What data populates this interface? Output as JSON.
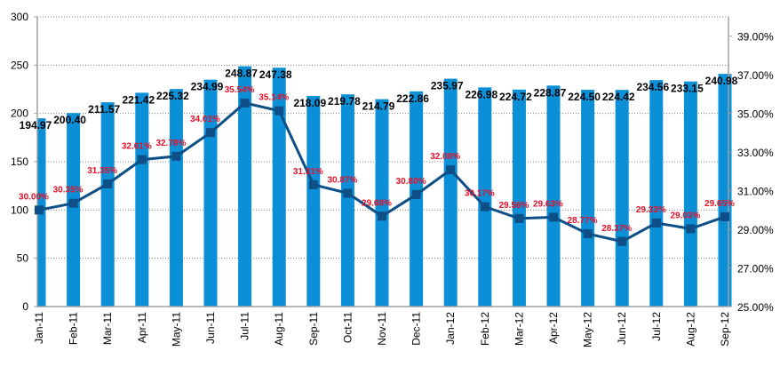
{
  "chart_data": {
    "type": "bar",
    "title": "",
    "xlabel": "",
    "ylabel": "",
    "categories": [
      "Jan-11",
      "Feb-11",
      "Mar-11",
      "Apr-11",
      "May-11",
      "Jun-11",
      "Jul-11",
      "Aug-11",
      "Sep-11",
      "Oct-11",
      "Nov-11",
      "Dec-11",
      "Jan-12",
      "Feb-12",
      "Mar-12",
      "Apr-12",
      "May-12",
      "Jun-12",
      "Jul-12",
      "Aug-12",
      "Sep-12"
    ],
    "series": [
      {
        "name": "Value",
        "type": "bar",
        "axis": "left",
        "color": "#0b8fd6",
        "values": [
          194.97,
          200.4,
          211.57,
          221.42,
          225.32,
          234.99,
          248.87,
          247.38,
          218.09,
          219.78,
          214.79,
          222.86,
          235.97,
          226.98,
          224.72,
          228.87,
          224.5,
          224.42,
          234.56,
          233.15,
          240.98
        ],
        "labels": [
          "194.97",
          "200.40",
          "211.57",
          "221.42",
          "225.32",
          "234.99",
          "248.87",
          "247.38",
          "218.09",
          "219.78",
          "214.79",
          "222.86",
          "235.97",
          "226.98",
          "224.72",
          "228.87",
          "224.50",
          "224.42",
          "234.56",
          "233.15",
          "240.98"
        ]
      },
      {
        "name": "Percent",
        "type": "line",
        "axis": "right",
        "color": "#0d4f86",
        "label_color": "#e8102a",
        "values": [
          30.0,
          30.35,
          31.35,
          32.61,
          32.78,
          34.01,
          35.54,
          35.14,
          31.31,
          30.87,
          29.68,
          30.8,
          32.08,
          30.17,
          29.56,
          29.63,
          28.77,
          28.37,
          29.33,
          29.03,
          29.65
        ],
        "labels": [
          "30.00%",
          "30.35%",
          "31.35%",
          "32.61%",
          "32.78%",
          "34.01%",
          "35.54%",
          "35.14%",
          "31.31%",
          "30.87%",
          "29.68%",
          "30.80%",
          "32.08%",
          "30.17%",
          "29.56%",
          "29.63%",
          "28.77%",
          "28.37%",
          "29.33%",
          "29.03%",
          "29.65%"
        ]
      }
    ],
    "y_left": {
      "ylim": [
        0,
        300
      ],
      "ticks": [
        0,
        50,
        100,
        150,
        200,
        250,
        300
      ],
      "tick_labels": [
        "0",
        "50",
        "100",
        "150",
        "200",
        "250",
        "300"
      ]
    },
    "y_right": {
      "ylim": [
        25,
        40
      ],
      "ticks": [
        25,
        27,
        29,
        31,
        33,
        35,
        37,
        39
      ],
      "tick_labels": [
        "25.00%",
        "27.00%",
        "29.00%",
        "31.00%",
        "33.00%",
        "35.00%",
        "37.00%",
        "39.00%"
      ]
    },
    "grid": true,
    "legend": "none"
  }
}
